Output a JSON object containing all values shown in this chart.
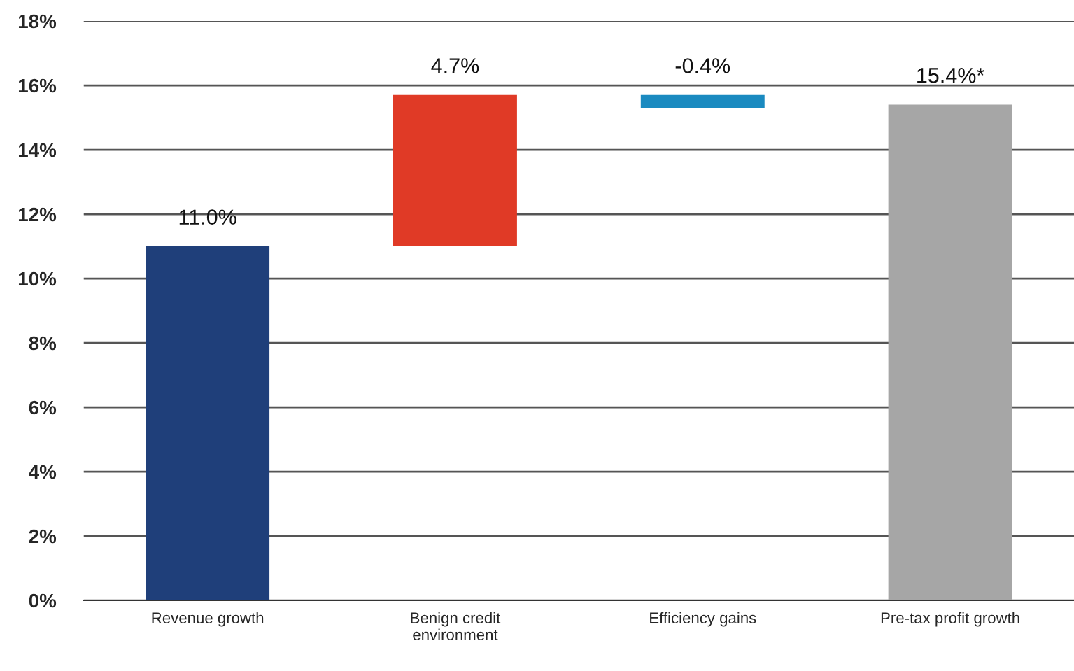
{
  "chart_data": {
    "type": "bar",
    "categories": [
      "Revenue growth",
      "Benign credit\nenvironment",
      "Efficiency gains",
      "Pre-tax profit growth"
    ],
    "values": [
      11.0,
      4.7,
      -0.4,
      15.4
    ],
    "base": [
      0,
      11.0,
      15.7,
      0
    ],
    "colors": [
      "#1f3f7a",
      "#e03a26",
      "#1a8ac0",
      "#a6a6a6"
    ],
    "value_labels": [
      "11.0%",
      "4.7%",
      "-0.4%",
      "15.4%*"
    ],
    "ylim": [
      0,
      18
    ],
    "yticks": [
      {
        "value": 0,
        "label": "0%"
      },
      {
        "value": 2,
        "label": "2%"
      },
      {
        "value": 4,
        "label": "4%"
      },
      {
        "value": 6,
        "label": "6%"
      },
      {
        "value": 8,
        "label": "8%"
      },
      {
        "value": 10,
        "label": "10%"
      },
      {
        "value": 12,
        "label": "12%"
      },
      {
        "value": 14,
        "label": "14%"
      },
      {
        "value": 16,
        "label": "16%"
      },
      {
        "value": 18,
        "label": "18%"
      }
    ],
    "grid": "y"
  }
}
